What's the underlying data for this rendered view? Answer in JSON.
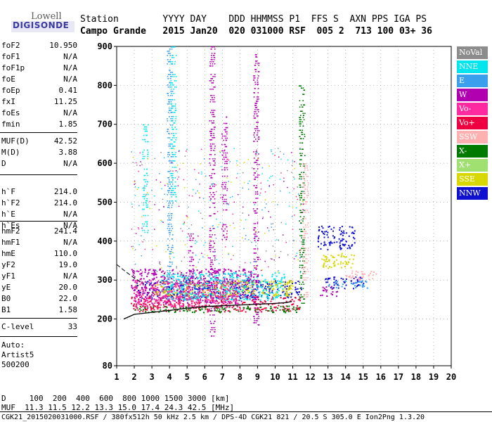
{
  "logo": {
    "top": "Lowell",
    "bottom": "DIGISONDE"
  },
  "header": {
    "labels": "Station        YYYY DAY    DDD HHMMSS P1  FFS S  AXN PPS IGA PS",
    "values": "Campo Grande   2015 Jan20  020 031000 RSF  005 2  713 100 03+ 36"
  },
  "params": {
    "group1": [
      {
        "name": "foF2",
        "value": "10.950"
      },
      {
        "name": "foF1",
        "value": "N/A"
      },
      {
        "name": "foF1p",
        "value": "N/A"
      },
      {
        "name": "foE",
        "value": "N/A"
      },
      {
        "name": "foEp",
        "value": "0.41"
      },
      {
        "name": "fxI",
        "value": "11.25"
      },
      {
        "name": "foEs",
        "value": "N/A"
      },
      {
        "name": "fmin",
        "value": "1.85"
      }
    ],
    "group2": [
      {
        "name": "MUF(D)",
        "value": "42.52"
      },
      {
        "name": "M(D)",
        "value": "3.88"
      },
      {
        "name": "D",
        "value": "N/A"
      }
    ],
    "group3": [
      {
        "name": "h`F",
        "value": "214.0"
      },
      {
        "name": "h`F2",
        "value": "214.0"
      },
      {
        "name": "h`E",
        "value": "N/A"
      },
      {
        "name": "h`Es",
        "value": "N/A"
      }
    ],
    "group4": [
      {
        "name": "hmF2",
        "value": "241.4"
      },
      {
        "name": "hmF1",
        "value": "N/A"
      },
      {
        "name": "hmE",
        "value": "110.0"
      },
      {
        "name": "yF2",
        "value": "19.0"
      },
      {
        "name": "yF1",
        "value": "N/A"
      },
      {
        "name": "yE",
        "value": "20.0"
      },
      {
        "name": "B0",
        "value": "22.0"
      },
      {
        "name": "B1",
        "value": "1.58"
      }
    ],
    "group5": [
      {
        "name": "C-level",
        "value": "33"
      }
    ]
  },
  "auto": {
    "line1": "Auto:",
    "line2": "Artist5",
    "line3": "500200"
  },
  "legend": [
    {
      "label": "NoVal",
      "color": "#8c8c8c",
      "text": "#ffffff"
    },
    {
      "label": "NNE",
      "color": "#00e5ee",
      "text": "#ffffff"
    },
    {
      "label": "E",
      "color": "#3aa0ee",
      "text": "#ffffff"
    },
    {
      "label": "W",
      "color": "#b000b0",
      "text": "#ffffff"
    },
    {
      "label": "Vo-",
      "color": "#ff2aa0",
      "text": "#ffffff"
    },
    {
      "label": "Vo+",
      "color": "#ee0040",
      "text": "#ffffff"
    },
    {
      "label": "SSW",
      "color": "#ffb0b0",
      "text": "#ffffff"
    },
    {
      "label": "X-",
      "color": "#007a00",
      "text": "#ffffff"
    },
    {
      "label": "X+",
      "color": "#a0e070",
      "text": "#ffffff"
    },
    {
      "label": "SSE",
      "color": "#d8d800",
      "text": "#ffffff"
    },
    {
      "label": "NNW",
      "color": "#1010d0",
      "text": "#ffffff"
    }
  ],
  "bottom": {
    "d_line": "D     100  200  400  600  800 1000 1500 3000 [km]",
    "muf_line": "MUF  11.3 11.5 12.2 13.3 15.0 17.4 24.3 42.5 [MHz]",
    "footer": "CGK21_2015020031000.RSF / 380fx512h 50 kHz 2.5 km / DPS-4D CGK21 821 / 20.5 S 305.0 E Ion2Png 1.3.20"
  },
  "chart_data": {
    "type": "scatter",
    "title": "",
    "xlabel": "",
    "ylabel": "",
    "xlim": [
      1,
      20
    ],
    "ylim": [
      80,
      900
    ],
    "x_ticks": [
      1,
      2,
      3,
      4,
      5,
      6,
      7,
      8,
      9,
      10,
      11,
      12,
      13,
      14,
      15,
      16,
      17,
      18,
      19,
      20
    ],
    "y_ticks": [
      80,
      200,
      300,
      400,
      500,
      600,
      700,
      800,
      900
    ],
    "grid": true,
    "legend_position": "right",
    "trace": {
      "x": [
        1.4,
        2.0,
        3.0,
        4.0,
        5.0,
        6.0,
        7.0,
        8.0,
        9.0,
        10.0,
        10.6,
        10.95
      ],
      "y": [
        200,
        212,
        217,
        222,
        228,
        232,
        234,
        236,
        238,
        240,
        242,
        245
      ]
    },
    "dashed_trace": {
      "x": [
        1.0,
        1.5,
        2.0,
        2.5
      ],
      "y": [
        340,
        322,
        305,
        292
      ]
    },
    "clusters": [
      {
        "series": "NNW",
        "x": [
          2,
          11.5
        ],
        "y": [
          255,
          300
        ]
      },
      {
        "series": "W",
        "x": [
          1.8,
          9
        ],
        "y": [
          240,
          330
        ]
      },
      {
        "series": "Vo+",
        "x": [
          1.8,
          11.5
        ],
        "y": [
          220,
          260
        ]
      },
      {
        "series": "SSE",
        "x": [
          3,
          11
        ],
        "y": [
          260,
          300
        ]
      },
      {
        "series": "NNE",
        "x": [
          3.5,
          10.5
        ],
        "y": [
          250,
          320
        ]
      },
      {
        "series": "X-",
        "x": [
          1.9,
          11.4
        ],
        "y": [
          218,
          235
        ]
      },
      {
        "series": "SSE",
        "x": [
          12.6,
          14.5
        ],
        "y": [
          330,
          370
        ]
      },
      {
        "series": "NNW",
        "x": [
          12.4,
          14.5
        ],
        "y": [
          380,
          440
        ]
      },
      {
        "series": "NNW",
        "x": [
          12.8,
          15
        ],
        "y": [
          280,
          310
        ]
      },
      {
        "series": "E",
        "x": [
          13,
          15.2
        ],
        "y": [
          280,
          300
        ]
      },
      {
        "series": "W",
        "x": [
          12.5,
          13.5
        ],
        "y": [
          260,
          285
        ]
      },
      {
        "series": "SSW",
        "x": [
          14,
          15.8
        ],
        "y": [
          300,
          325
        ]
      },
      {
        "series": "Vo-",
        "x": [
          1.9,
          8
        ],
        "y": [
          230,
          300
        ]
      }
    ],
    "spikes": [
      {
        "series": "NNE",
        "x": 2.6,
        "y": [
          420,
          700
        ]
      },
      {
        "series": "E",
        "x": 4.0,
        "y": [
          300,
          900
        ]
      },
      {
        "series": "NNE",
        "x": 4.2,
        "y": [
          500,
          900
        ]
      },
      {
        "series": "W",
        "x": 6.4,
        "y": [
          150,
          900
        ]
      },
      {
        "series": "W",
        "x": 7.1,
        "y": [
          400,
          720
        ]
      },
      {
        "series": "W",
        "x": 8.9,
        "y": [
          180,
          880
        ]
      },
      {
        "series": "X-",
        "x": 11.5,
        "y": [
          240,
          800
        ]
      },
      {
        "series": "SSW",
        "x": 11.7,
        "y": [
          250,
          600
        ]
      },
      {
        "series": "W",
        "x": 5.2,
        "y": [
          300,
          420
        ]
      }
    ]
  }
}
